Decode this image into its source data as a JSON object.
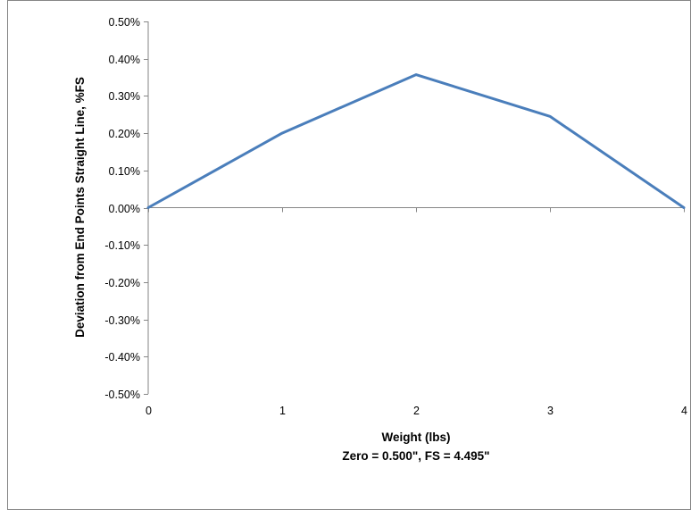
{
  "chart_data": {
    "type": "line",
    "title": "",
    "xlabel": "Weight (lbs)",
    "xlabel_sub": "Zero = 0.500\",  FS = 4.495\"",
    "ylabel": "Deviation from End Points Straight Line, %FS",
    "x": [
      0,
      1,
      2,
      3,
      4
    ],
    "series": [
      {
        "values": [
          0.0,
          0.2,
          0.357,
          0.245,
          0.0
        ]
      }
    ],
    "xlim": [
      0,
      4
    ],
    "ylim": [
      -0.5,
      0.5
    ],
    "x_ticks": [
      "0",
      "1",
      "2",
      "3",
      "4"
    ],
    "y_ticks": [
      "0.50%",
      "0.40%",
      "0.30%",
      "0.20%",
      "0.10%",
      "0.00%",
      "-0.10%",
      "-0.20%",
      "-0.30%",
      "-0.40%",
      "-0.50%"
    ],
    "y_tick_values": [
      0.5,
      0.4,
      0.3,
      0.2,
      0.1,
      0.0,
      -0.1,
      -0.2,
      -0.3,
      -0.4,
      -0.5
    ],
    "grid": false,
    "legend": "none",
    "line_color": "#4a7ebb",
    "axis_color": "#868686",
    "frame_color": "#868686"
  }
}
